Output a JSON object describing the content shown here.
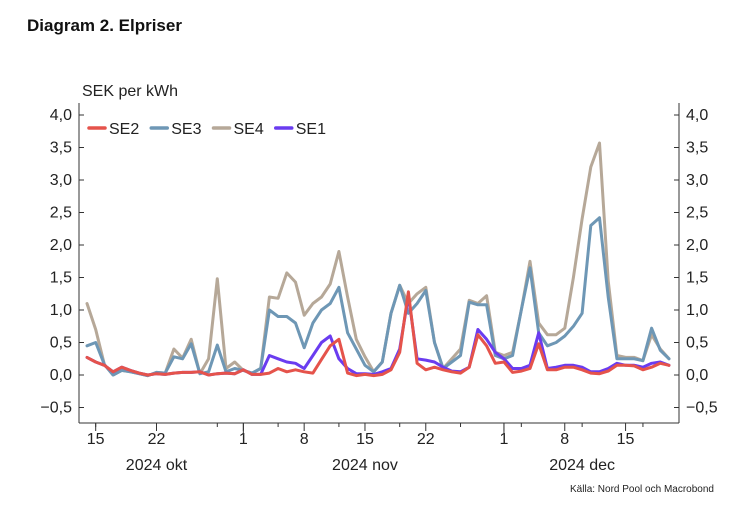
{
  "title": "Diagram 2. Elpriser",
  "source": "Källa: Nord Pool och Macrobond",
  "chart_data": {
    "type": "line",
    "ylabel": "SEK per kWh",
    "ylim": [
      -0.5,
      4.0
    ],
    "yticks": [
      -0.5,
      0,
      0.5,
      1,
      1.5,
      2,
      2.5,
      3,
      3.5,
      4
    ],
    "ytick_labels": [
      "−0,5",
      "0,0",
      "0,5",
      "1,0",
      "1,5",
      "2,0",
      "2,5",
      "3,0",
      "3,5",
      "4,0"
    ],
    "x_start": "2024-10-14",
    "x_end": "2024-12-20",
    "x": [
      "2024-10-14",
      "2024-10-15",
      "2024-10-16",
      "2024-10-17",
      "2024-10-18",
      "2024-10-19",
      "2024-10-20",
      "2024-10-21",
      "2024-10-22",
      "2024-10-23",
      "2024-10-24",
      "2024-10-25",
      "2024-10-26",
      "2024-10-27",
      "2024-10-28",
      "2024-10-29",
      "2024-10-30",
      "2024-10-31",
      "2024-11-01",
      "2024-11-02",
      "2024-11-03",
      "2024-11-04",
      "2024-11-05",
      "2024-11-06",
      "2024-11-07",
      "2024-11-08",
      "2024-11-09",
      "2024-11-10",
      "2024-11-11",
      "2024-11-12",
      "2024-11-13",
      "2024-11-14",
      "2024-11-15",
      "2024-11-16",
      "2024-11-17",
      "2024-11-18",
      "2024-11-19",
      "2024-11-20",
      "2024-11-21",
      "2024-11-22",
      "2024-11-23",
      "2024-11-24",
      "2024-11-25",
      "2024-11-26",
      "2024-11-27",
      "2024-11-28",
      "2024-11-29",
      "2024-11-30",
      "2024-12-01",
      "2024-12-02",
      "2024-12-03",
      "2024-12-04",
      "2024-12-05",
      "2024-12-06",
      "2024-12-07",
      "2024-12-08",
      "2024-12-09",
      "2024-12-10",
      "2024-12-11",
      "2024-12-12",
      "2024-12-13",
      "2024-12-14",
      "2024-12-15",
      "2024-12-16",
      "2024-12-17",
      "2024-12-18",
      "2024-12-19",
      "2024-12-20"
    ],
    "xticks": [
      {
        "date": "2024-10-15",
        "label": "15"
      },
      {
        "date": "2024-10-22",
        "label": "22"
      },
      {
        "date": "2024-11-01",
        "label": "1"
      },
      {
        "date": "2024-11-08",
        "label": "8"
      },
      {
        "date": "2024-11-15",
        "label": "15"
      },
      {
        "date": "2024-11-22",
        "label": "22"
      },
      {
        "date": "2024-12-01",
        "label": "1"
      },
      {
        "date": "2024-12-08",
        "label": "8"
      },
      {
        "date": "2024-12-15",
        "label": "15"
      }
    ],
    "month_labels": [
      {
        "date": "2024-10-22",
        "label": "2024 okt"
      },
      {
        "date": "2024-11-15",
        "label": "2024 nov"
      },
      {
        "date": "2024-12-10",
        "label": "2024 dec"
      }
    ],
    "legend_position": "top-left",
    "grid": false,
    "series": [
      {
        "name": "SE2",
        "color": "#e5534b",
        "values": [
          0.27,
          0.2,
          0.15,
          0.05,
          0.12,
          0.07,
          0.03,
          0,
          0.02,
          0.01,
          0.03,
          0.04,
          0.04,
          0.05,
          0,
          0.02,
          0.03,
          0.02,
          0.08,
          0.01,
          0.01,
          0.03,
          0.1,
          0.05,
          0.08,
          0.05,
          0.03,
          0.24,
          0.45,
          0.55,
          0.03,
          -0.01,
          0.01,
          -0.01,
          0.01,
          0.08,
          0.35,
          1.28,
          0.18,
          0.08,
          0.12,
          0.08,
          0.05,
          0.03,
          0.12,
          0.62,
          0.45,
          0.18,
          0.2,
          0.04,
          0.06,
          0.1,
          0.48,
          0.08,
          0.08,
          0.12,
          0.12,
          0.08,
          0.03,
          0.02,
          0.06,
          0.15,
          0.15,
          0.14,
          0.08,
          0.12,
          0.18,
          0.15
        ]
      },
      {
        "name": "SE3",
        "color": "#6e97b5",
        "values": [
          0.45,
          0.5,
          0.16,
          0,
          0.07,
          0.05,
          0.02,
          -0.01,
          0.04,
          0.03,
          0.28,
          0.25,
          0.48,
          0.02,
          0.05,
          0.46,
          0.05,
          0.1,
          0.07,
          0.03,
          0.1,
          1.0,
          0.9,
          0.9,
          0.8,
          0.42,
          0.8,
          1.0,
          1.1,
          1.35,
          0.65,
          0.4,
          0.15,
          0.05,
          0.2,
          0.95,
          1.38,
          0.95,
          1.1,
          1.3,
          0.5,
          0.1,
          0.2,
          0.3,
          1.12,
          1.08,
          1.08,
          0.3,
          0.25,
          0.3,
          1.0,
          1.65,
          0.65,
          0.45,
          0.5,
          0.6,
          0.75,
          0.95,
          2.3,
          2.42,
          1.2,
          0.25,
          0.25,
          0.25,
          0.22,
          0.72,
          0.38,
          0.25
        ]
      },
      {
        "name": "SE4",
        "color": "#b6a898",
        "values": [
          1.1,
          0.7,
          0.16,
          0,
          0.07,
          0.05,
          0.02,
          -0.01,
          0.04,
          0.03,
          0.4,
          0.26,
          0.55,
          0.02,
          0.25,
          1.48,
          0.1,
          0.2,
          0.07,
          0.03,
          0.1,
          1.2,
          1.18,
          1.57,
          1.43,
          0.92,
          1.1,
          1.2,
          1.4,
          1.9,
          1.2,
          0.55,
          0.28,
          0.05,
          0.2,
          0.95,
          1.38,
          1.1,
          1.25,
          1.35,
          0.5,
          0.1,
          0.25,
          0.4,
          1.15,
          1.1,
          1.22,
          0.35,
          0.3,
          0.35,
          1.0,
          1.75,
          0.8,
          0.62,
          0.62,
          0.72,
          1.5,
          2.4,
          3.2,
          3.57,
          1.45,
          0.3,
          0.27,
          0.27,
          0.22,
          0.62,
          0.4,
          0.25
        ]
      },
      {
        "name": "SE1",
        "color": "#6a3cf0",
        "values": [
          0.27,
          0.2,
          0.15,
          0.05,
          0.12,
          0.07,
          0.03,
          0,
          0.02,
          0.01,
          0.03,
          0.04,
          0.04,
          0.05,
          0,
          0.02,
          0.03,
          0.02,
          0.08,
          0.01,
          0.01,
          0.3,
          0.25,
          0.2,
          0.18,
          0.1,
          0.3,
          0.5,
          0.6,
          0.25,
          0.1,
          0.02,
          0.02,
          0.01,
          0.05,
          0.1,
          0.4,
          1.22,
          0.25,
          0.23,
          0.2,
          0.12,
          0.06,
          0.05,
          0.12,
          0.7,
          0.55,
          0.35,
          0.25,
          0.1,
          0.1,
          0.15,
          0.65,
          0.1,
          0.12,
          0.15,
          0.15,
          0.12,
          0.05,
          0.05,
          0.1,
          0.18,
          0.15,
          0.15,
          0.12,
          0.18,
          0.2,
          0.15
        ]
      }
    ]
  }
}
